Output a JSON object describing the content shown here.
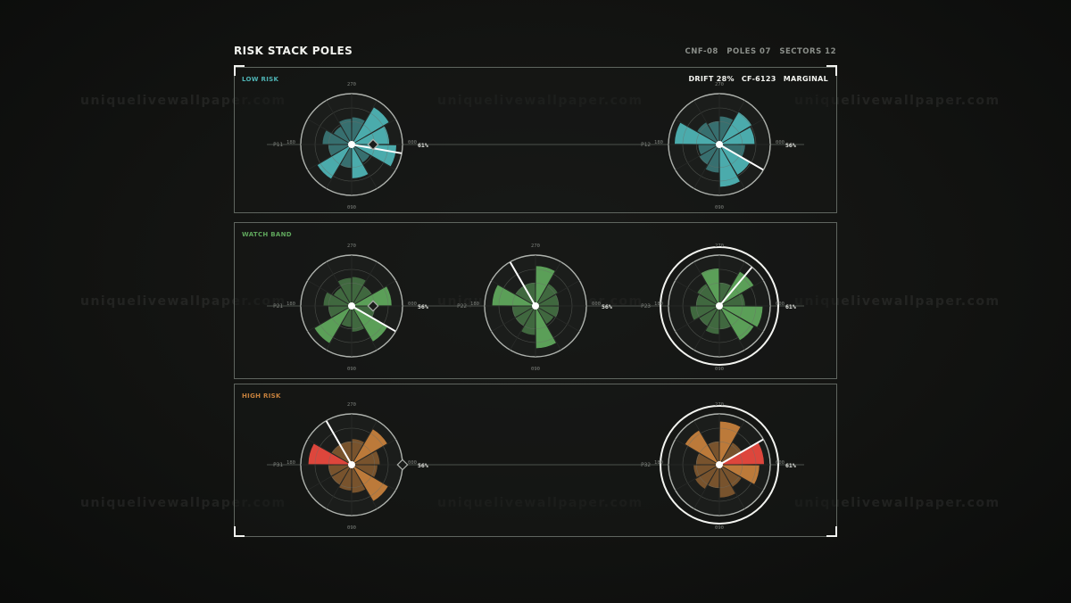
{
  "title": "RISK STACK POLES",
  "meta": [
    "CNF-08",
    "POLES 07",
    "SECTORS 12"
  ],
  "status": [
    "DRIFT 28%",
    "CF-6123",
    "MARGINAL"
  ],
  "watermark": "uniquelivewallpaper.com",
  "colors": {
    "low": "#4eb3b4",
    "watch": "#5fa65c",
    "high": "#c5803c",
    "alert": "#e8493e"
  },
  "axis_labels": {
    "top": "270",
    "bottom": "090",
    "left": "180",
    "right": "000"
  },
  "chart_data": {
    "type": "polar-bar",
    "sectors": 12,
    "bands": [
      {
        "name": "LOW RISK",
        "color": "#4eb3b4",
        "poles": [
          {
            "label": "P11",
            "pct": "61%",
            "needle": 10,
            "ring": false,
            "diamond": true,
            "values": [
              0.95,
              0.45,
              0.72,
              0.5,
              0.85,
              0.5,
              0.62,
              0.45,
              0.55,
              0.58,
              0.92,
              0.8
            ],
            "alert": []
          },
          {
            "label": "P12",
            "pct": "56%",
            "needle": 30,
            "ring": false,
            "diamond": false,
            "values": [
              0.55,
              0.75,
              0.9,
              0.6,
              0.5,
              0.45,
              0.95,
              0.55,
              0.5,
              0.6,
              0.8,
              0.75
            ],
            "alert": []
          }
        ]
      },
      {
        "name": "WATCH BAND",
        "color": "#5fa65c",
        "poles": [
          {
            "label": "P21",
            "pct": "56%",
            "needle": 30,
            "ring": false,
            "diamond": true,
            "values": [
              0.5,
              0.88,
              0.55,
              0.45,
              0.92,
              0.5,
              0.6,
              0.45,
              0.6,
              0.62,
              0.5,
              0.85
            ],
            "alert": []
          },
          {
            "label": "P22",
            "pct": "56%",
            "needle": 240,
            "ring": false,
            "diamond": false,
            "values": [
              0.5,
              0.45,
              0.9,
              0.62,
              0.5,
              0.5,
              0.92,
              0.5,
              0.5,
              0.85,
              0.55,
              0.5
            ],
            "alert": []
          },
          {
            "label": "P23",
            "pct": "61%",
            "needle": 310,
            "ring": true,
            "diamond": false,
            "values": [
              0.92,
              0.85,
              0.5,
              0.6,
              0.5,
              0.62,
              0.5,
              0.55,
              0.8,
              0.5,
              0.85,
              0.55
            ],
            "alert": []
          }
        ]
      },
      {
        "name": "HIGH RISK",
        "color": "#c5803c",
        "poles": [
          {
            "label": "P31",
            "pct": "56%",
            "needle": 240,
            "ring": false,
            "diamond": true,
            "values": [
              0.55,
              0.9,
              0.6,
              0.55,
              0.5,
              0.5,
              0.92,
              0.5,
              0.5,
              0.55,
              0.88,
              0.6
            ],
            "alert": [
              6
            ]
          },
          {
            "label": "P32",
            "pct": "61%",
            "needle": 330,
            "ring": true,
            "diamond": false,
            "values": [
              0.85,
              0.55,
              0.7,
              0.5,
              0.6,
              0.55,
              0.5,
              0.85,
              0.5,
              0.92,
              0.55,
              0.95
            ],
            "alert": [
              11
            ]
          }
        ]
      }
    ]
  }
}
